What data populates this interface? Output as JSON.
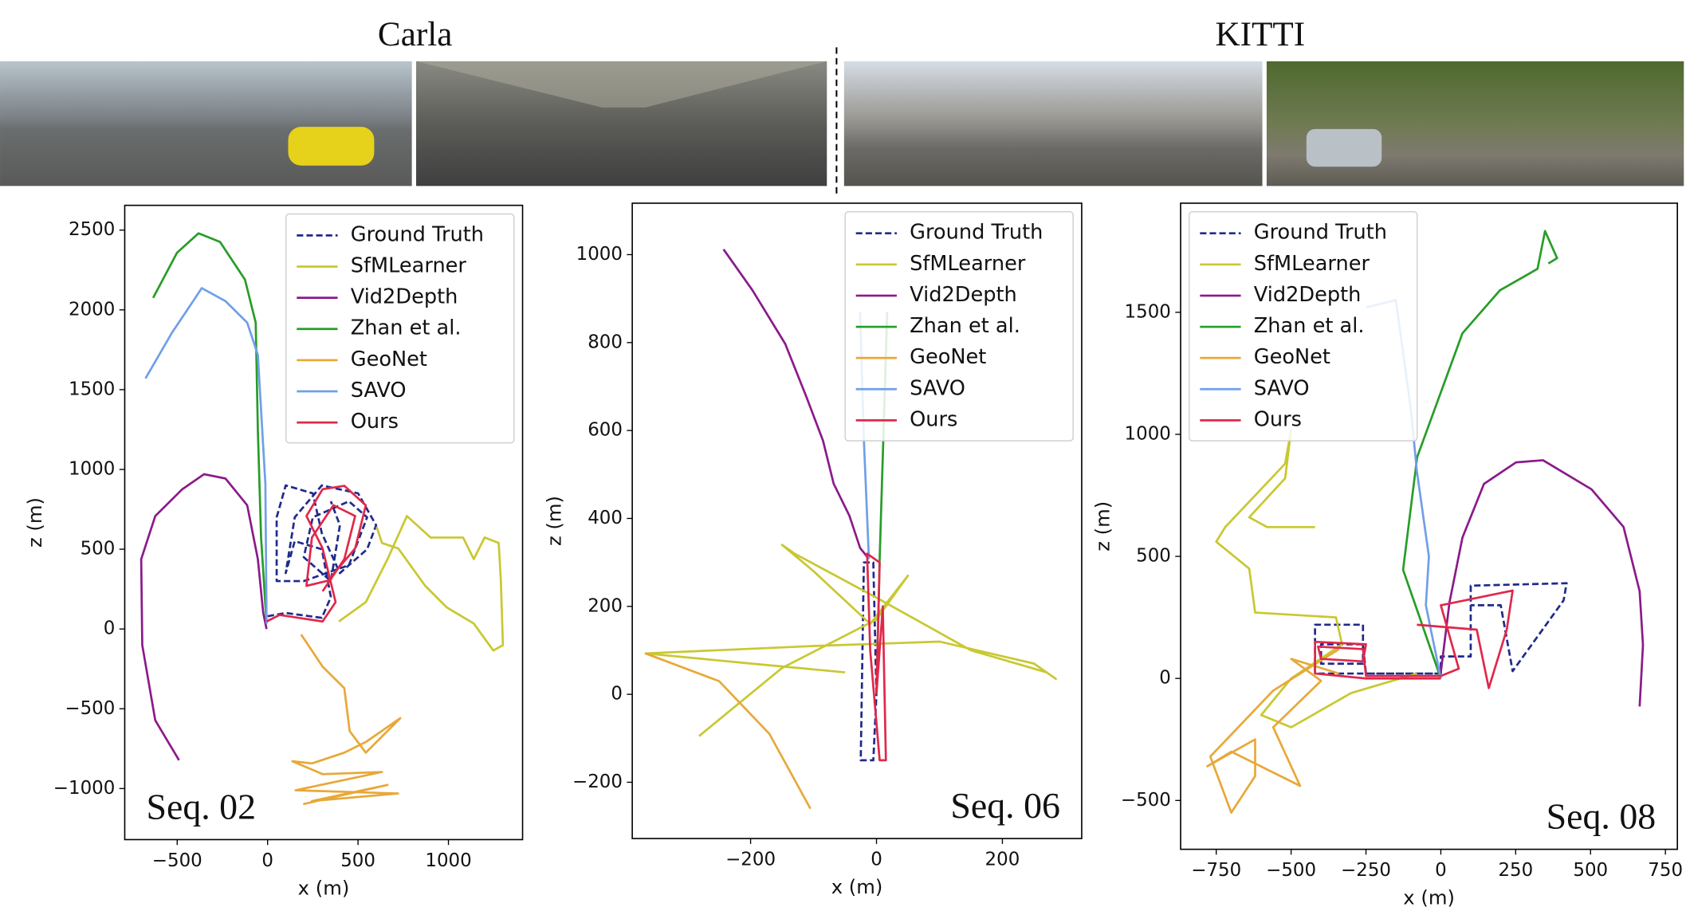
{
  "dataset_labels": [
    "Carla",
    "KITTI"
  ],
  "chart_data": [
    {
      "type": "line",
      "annotation": "Seq. 02",
      "annotation_corner": "lower left",
      "xlabel": "x (m)",
      "ylabel": "z (m)",
      "xlim": [
        -790,
        1410
      ],
      "ylim": [
        -1320,
        2655
      ],
      "xticks": [
        {
          "value": -500,
          "label": "−500"
        },
        0,
        500,
        1000
      ],
      "yticks": [
        {
          "value": -1000,
          "label": "−1000"
        },
        {
          "value": -500,
          "label": "−500"
        },
        0,
        500,
        1000,
        1500,
        2000,
        2500
      ],
      "legend": "upper right",
      "series": [
        {
          "name": "Ground Truth",
          "color": "#1f2a8c",
          "style": "dashed",
          "x": [
            0,
            100,
            300,
            350,
            300,
            150,
            100,
            150,
            300,
            500,
            600,
            550,
            400,
            300,
            250,
            100,
            50,
            50,
            200,
            450,
            550,
            450,
            250,
            200,
            350,
            400,
            350
          ],
          "values": [
            80,
            100,
            70,
            200,
            500,
            550,
            350,
            700,
            900,
            850,
            650,
            500,
            350,
            600,
            850,
            900,
            700,
            300,
            300,
            400,
            700,
            800,
            700,
            450,
            300,
            650,
            800
          ]
        },
        {
          "name": "SfMLearner",
          "color": "#c8c832",
          "style": "solid",
          "x": [
            394,
            543,
            663,
            770,
            901,
            1081,
            1140,
            1200,
            1278,
            1290,
            1301,
            1248,
            1140,
            991,
            872,
            722,
            633,
            603
          ],
          "values": [
            47,
            168,
            438,
            708,
            573,
            573,
            438,
            573,
            539,
            303,
            -101,
            -135,
            34,
            135,
            270,
            505,
            539,
            640
          ]
        },
        {
          "name": "Vid2Depth",
          "color": "#8b1a8b",
          "style": "solid",
          "x": [
            -490,
            -621,
            -693,
            -699,
            -621,
            -472,
            -352,
            -233,
            -113,
            -54,
            -24,
            -6
          ],
          "values": [
            -822,
            -573,
            -101,
            438,
            708,
            876,
            970,
            943,
            775,
            438,
            101,
            0
          ]
        },
        {
          "name": "Zhan et al.",
          "color": "#279d27",
          "style": "solid",
          "x": [
            -6,
            -36,
            -54,
            -66,
            -125,
            -263,
            -382,
            -501,
            -633
          ],
          "values": [
            34,
            573,
            1247,
            1920,
            2190,
            2426,
            2480,
            2358,
            2075
          ]
        },
        {
          "name": "GeoNet",
          "color": "#e8a838",
          "style": "solid",
          "x": [
            185,
            304,
            424,
            454,
            543,
            734,
            543,
            424,
            245,
            137,
            304,
            633,
            155,
            722,
            245,
            663,
            197
          ],
          "values": [
            -34,
            -236,
            -371,
            -640,
            -775,
            -559,
            -708,
            -775,
            -842,
            -829,
            -910,
            -896,
            -1011,
            -1031,
            -1078,
            -977,
            -1098
          ]
        },
        {
          "name": "SAVO",
          "color": "#6f9fe8",
          "style": "solid",
          "x": [
            -6,
            -12,
            -54,
            -113,
            -233,
            -364,
            -412,
            -531,
            -675
          ],
          "values": [
            34,
            910,
            1718,
            1920,
            2055,
            2136,
            2055,
            1853,
            1570
          ]
        },
        {
          "name": "Ours",
          "color": "#e0284a",
          "style": "solid",
          "x": [
            -6,
            66,
            304,
            376,
            304,
            215,
            304,
            424,
            543,
            484,
            334,
            215,
            245,
            364,
            484,
            424,
            304
          ],
          "values": [
            47,
            88,
            47,
            168,
            505,
            708,
            876,
            897,
            775,
            505,
            303,
            270,
            573,
            775,
            708,
            438,
            236
          ]
        }
      ]
    },
    {
      "type": "line",
      "annotation": "Seq. 06",
      "annotation_corner": "lower right",
      "xlabel": "x (m)",
      "ylabel": "z (m)",
      "xlim": [
        -388,
        326
      ],
      "ylim": [
        -328,
        1117
      ],
      "xticks": [
        {
          "value": -200,
          "label": "−200"
        },
        0,
        200
      ],
      "yticks": [
        {
          "value": -200,
          "label": "−200"
        },
        0,
        200,
        400,
        600,
        800,
        1000
      ],
      "legend": "upper right",
      "series": [
        {
          "name": "Ground Truth",
          "color": "#1f2a8c",
          "style": "dashed",
          "x": [
            0,
            -5,
            -20,
            -25,
            -5,
            0
          ],
          "values": [
            0,
            300,
            300,
            -150,
            -150,
            0
          ]
        },
        {
          "name": "SfMLearner",
          "color": "#c8c832",
          "style": "solid",
          "x": [
            -282,
            -150,
            0,
            50,
            -10,
            -100,
            -150,
            -130,
            0,
            150,
            270,
            285,
            250,
            100,
            -100,
            -367,
            -200,
            -50
          ],
          "values": [
            -95,
            60,
            170,
            270,
            160,
            280,
            340,
            320,
            220,
            100,
            50,
            35,
            70,
            120,
            110,
            93,
            70,
            50
          ]
        },
        {
          "name": "Vid2Depth",
          "color": "#8b1a8b",
          "style": "solid",
          "x": [
            -243,
            -197,
            -145,
            -111,
            -85,
            -68,
            -43,
            -26,
            -12
          ],
          "values": [
            1012,
            919,
            797,
            675,
            577,
            479,
            406,
            333,
            308
          ]
        },
        {
          "name": "Zhan et al.",
          "color": "#279d27",
          "style": "solid",
          "x": [
            0,
            5,
            17
          ],
          "values": [
            0,
            308,
            870
          ]
        },
        {
          "name": "GeoNet",
          "color": "#e8a838",
          "style": "solid",
          "x": [
            -367,
            -250,
            -170,
            -105
          ],
          "values": [
            93,
            30,
            -90,
            -260
          ]
        },
        {
          "name": "SAVO",
          "color": "#6f9fe8",
          "style": "solid",
          "x": [
            -12,
            -20,
            -26
          ],
          "values": [
            308,
            580,
            870
          ]
        },
        {
          "name": "Ours",
          "color": "#e0284a",
          "style": "solid",
          "x": [
            0,
            5,
            -15,
            -10,
            5,
            15,
            10,
            0
          ],
          "values": [
            0,
            300,
            320,
            100,
            -150,
            -150,
            200,
            0
          ]
        }
      ]
    },
    {
      "type": "line",
      "annotation": "Seq. 08",
      "annotation_corner": "lower right",
      "xlabel": "x (m)",
      "ylabel": "z (m)",
      "xlim": [
        -869,
        790
      ],
      "ylim": [
        -700,
        1947
      ],
      "xticks": [
        {
          "value": -750,
          "label": "−750"
        },
        {
          "value": -500,
          "label": "−500"
        },
        {
          "value": -250,
          "label": "−250"
        },
        0,
        250,
        500,
        750
      ],
      "yticks": [
        {
          "value": -500,
          "label": "−500"
        },
        0,
        500,
        1000,
        1500
      ],
      "legend": "upper left",
      "series": [
        {
          "name": "Ground Truth",
          "color": "#1f2a8c",
          "style": "dashed",
          "x": [
            0,
            -420,
            -420,
            -260,
            -260,
            -400,
            -400,
            -260,
            -250,
            0,
            0,
            100,
            100,
            100,
            420,
            410,
            240,
            200,
            100
          ],
          "values": [
            20,
            20,
            220,
            220,
            60,
            60,
            140,
            140,
            20,
            20,
            90,
            90,
            300,
            380,
            390,
            320,
            30,
            300,
            300
          ]
        },
        {
          "name": "SfMLearner",
          "color": "#c8c832",
          "style": "solid",
          "x": [
            -420,
            -580,
            -640,
            -520,
            -500,
            -520,
            -720,
            -750,
            -640,
            -620,
            -350,
            -330,
            -500,
            -600,
            -500,
            -300,
            -80
          ],
          "values": [
            620,
            620,
            660,
            820,
            1020,
            880,
            620,
            560,
            450,
            270,
            250,
            140,
            0,
            -150,
            -200,
            -60,
            20
          ]
        },
        {
          "name": "Vid2Depth",
          "color": "#8b1a8b",
          "style": "solid",
          "x": [
            664,
            675,
            664,
            610,
            503,
            341,
            251,
            144,
            72,
            29,
            0
          ],
          "values": [
            -115,
            137,
            357,
            621,
            775,
            894,
            885,
            797,
            577,
            313,
            26
          ]
        },
        {
          "name": "Zhan et al.",
          "color": "#279d27",
          "style": "solid",
          "x": [
            0,
            -126,
            -79,
            72,
            197,
            323,
            348,
            388,
            359
          ],
          "values": [
            0,
            445,
            907,
            1414,
            1590,
            1678,
            1833,
            1722,
            1700
          ]
        },
        {
          "name": "GeoNet",
          "color": "#e8a838",
          "style": "solid",
          "x": [
            -340,
            -560,
            -770,
            -700,
            -620,
            -620,
            -780,
            -700,
            -470,
            -560,
            -400,
            -500,
            -340
          ],
          "values": [
            120,
            -50,
            -320,
            -550,
            -400,
            -250,
            -360,
            -300,
            -440,
            -200,
            -10,
            80,
            20
          ]
        },
        {
          "name": "SAVO",
          "color": "#6f9fe8",
          "style": "solid",
          "x": [
            0,
            -50,
            -40,
            -80,
            -100,
            -150,
            -250
          ],
          "values": [
            0,
            300,
            500,
            850,
            1100,
            1550,
            1520
          ]
        },
        {
          "name": "Ours",
          "color": "#e0284a",
          "style": "solid",
          "x": [
            0,
            -250,
            -420,
            -420,
            -250,
            -260,
            -400,
            -410,
            -260,
            -250,
            0,
            60,
            0,
            240,
            220,
            160,
            120,
            -80
          ],
          "values": [
            0,
            0,
            20,
            150,
            140,
            70,
            80,
            130,
            120,
            10,
            10,
            40,
            300,
            360,
            200,
            -40,
            200,
            220
          ]
        }
      ]
    }
  ]
}
